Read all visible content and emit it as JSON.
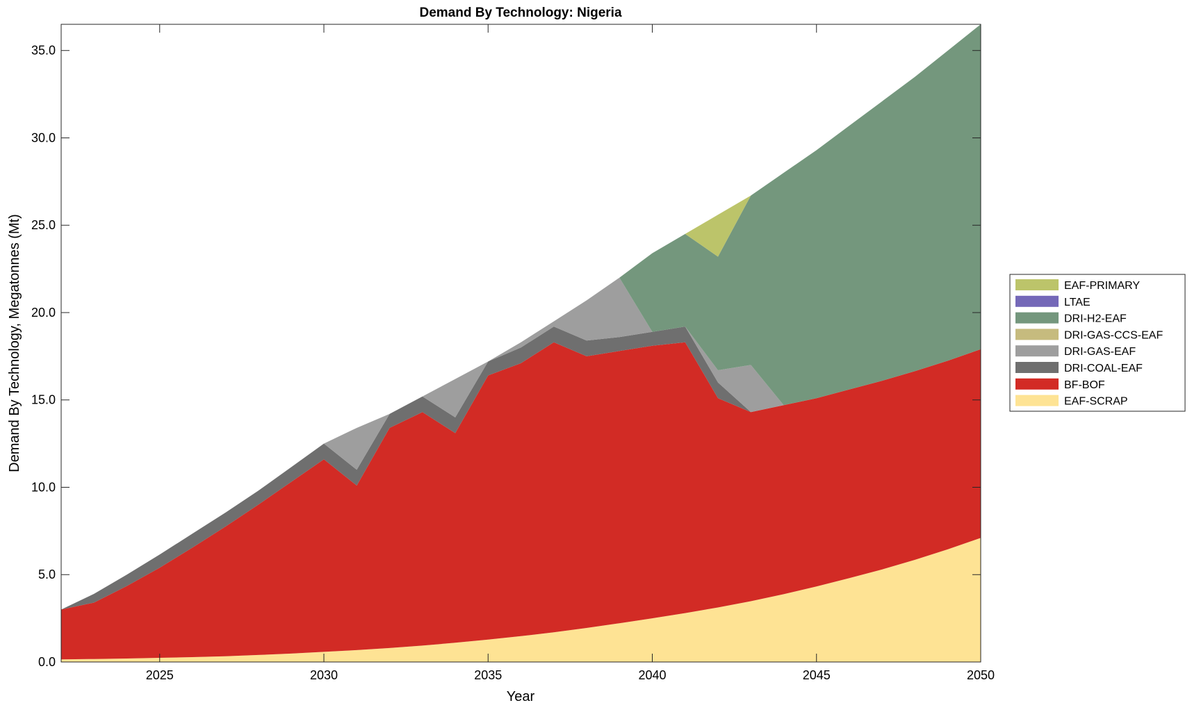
{
  "chart_data": {
    "type": "area",
    "stacked": true,
    "title": "Demand By Technology: Nigeria",
    "xlabel": "Year",
    "ylabel": "Demand By Technology, Megatonnes (Mt)",
    "xlim": [
      2022,
      2050
    ],
    "ylim": [
      0,
      36.5
    ],
    "xticks": [
      "2025",
      "2030",
      "2035",
      "2040",
      "2045",
      "2050"
    ],
    "yticks": [
      "0.0",
      "5.0",
      "10.0",
      "15.0",
      "20.0",
      "25.0",
      "30.0",
      "35.0"
    ],
    "grid": false,
    "legend_placement": "right",
    "x": [
      2022,
      2023,
      2024,
      2025,
      2026,
      2027,
      2028,
      2029,
      2030,
      2031,
      2032,
      2033,
      2034,
      2035,
      2036,
      2037,
      2038,
      2039,
      2040,
      2041,
      2042,
      2043,
      2044,
      2045,
      2046,
      2047,
      2048,
      2049,
      2050
    ],
    "series": [
      {
        "name": "EAF-SCRAP",
        "color": "#fee394",
        "values": [
          0.15,
          0.17,
          0.2,
          0.24,
          0.28,
          0.33,
          0.4,
          0.48,
          0.58,
          0.68,
          0.8,
          0.94,
          1.1,
          1.28,
          1.48,
          1.7,
          1.95,
          2.22,
          2.5,
          2.8,
          3.12,
          3.48,
          3.88,
          4.32,
          4.8,
          5.3,
          5.85,
          6.45,
          7.1
        ]
      },
      {
        "name": "BF-BOF",
        "color": "#d22b25",
        "values": [
          2.85,
          3.23,
          4.15,
          5.16,
          6.27,
          7.42,
          8.6,
          9.82,
          11.02,
          9.42,
          12.6,
          13.36,
          12.0,
          15.12,
          15.62,
          16.6,
          15.55,
          15.58,
          15.6,
          15.5,
          11.98,
          10.82,
          10.82,
          10.78,
          10.8,
          10.8,
          10.8,
          10.8,
          10.8
        ]
      },
      {
        "name": "DRI-COAL-EAF",
        "color": "#6f6f6f",
        "values": [
          0,
          0.5,
          0.65,
          0.75,
          0.8,
          0.8,
          0.8,
          0.85,
          0.9,
          0.9,
          0.8,
          0.9,
          0.9,
          0.8,
          0.9,
          0.9,
          0.9,
          0.8,
          0.8,
          0.9,
          0.9,
          0,
          0,
          0,
          0,
          0,
          0,
          0,
          0
        ]
      },
      {
        "name": "DRI-GAS-EAF",
        "color": "#9e9e9e",
        "values": [
          0,
          0,
          0,
          0,
          0,
          0,
          0,
          0,
          0,
          2.4,
          0,
          0,
          2.2,
          0,
          0.3,
          0.3,
          2.3,
          3.4,
          0,
          0,
          0.7,
          2.7,
          0,
          0,
          0,
          0,
          0,
          0,
          0
        ]
      },
      {
        "name": "DRI-GAS-CCS-EAF",
        "color": "#c6bb7e",
        "values": [
          0,
          0,
          0,
          0,
          0,
          0,
          0,
          0,
          0,
          0,
          0,
          0,
          0,
          0,
          0,
          0,
          0,
          0,
          0,
          0,
          0,
          0,
          0,
          0,
          0,
          0,
          0,
          0,
          0
        ]
      },
      {
        "name": "DRI-H2-EAF",
        "color": "#74977d",
        "values": [
          0,
          0,
          0,
          0,
          0,
          0,
          0,
          0,
          0,
          0,
          0,
          0,
          0,
          0,
          0,
          0,
          0,
          0,
          4.5,
          5.3,
          6.5,
          9.7,
          13.3,
          14.2,
          15.1,
          16.0,
          16.85,
          17.75,
          18.6
        ]
      },
      {
        "name": "LTAE",
        "color": "#7468b8",
        "values": [
          0,
          0,
          0,
          0,
          0,
          0,
          0,
          0,
          0,
          0,
          0,
          0,
          0,
          0,
          0,
          0,
          0,
          0,
          0,
          0,
          0,
          0,
          0,
          0,
          0,
          0,
          0,
          0,
          0
        ]
      },
      {
        "name": "EAF-PRIMARY",
        "color": "#bcc46a",
        "values": [
          0,
          0,
          0,
          0,
          0,
          0,
          0,
          0,
          0,
          0,
          0,
          0,
          0,
          0,
          0,
          0,
          0,
          0,
          0,
          0,
          2.4,
          0,
          0,
          0,
          0,
          0,
          0,
          0,
          0
        ]
      }
    ]
  }
}
